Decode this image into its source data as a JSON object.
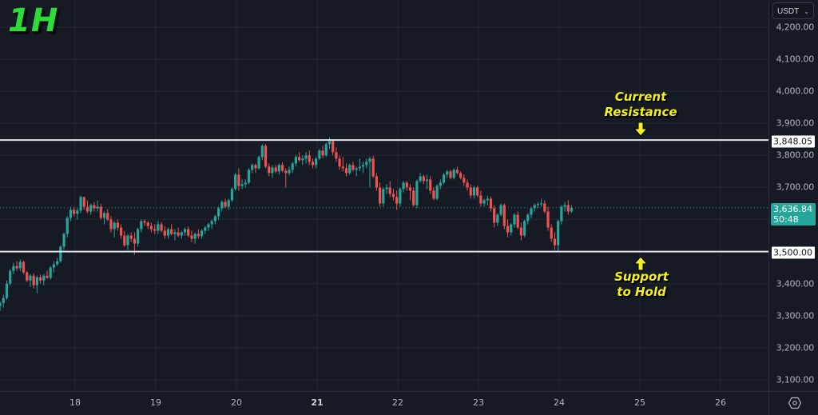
{
  "timeframe_label": "1H",
  "currency": {
    "label": "USDT",
    "icon": "chevron-down-icon"
  },
  "colors": {
    "background": "#161a25",
    "grid": "#232733",
    "up": "#26a69a",
    "down": "#ef5350",
    "level_line": "#e0e3eb",
    "timeframe": "#2ddc38",
    "annotation": "#f5f01b",
    "last_price_bg": "#26a69a"
  },
  "price_axis": {
    "ticks": [
      "4,200.00",
      "4,100.00",
      "4,000.00",
      "3,900.00",
      "3,800.00",
      "3,700.00",
      "3,400.00",
      "3,300.00",
      "3,200.00",
      "3,100.00"
    ],
    "tick_values": [
      4200,
      4100,
      4000,
      3900,
      3800,
      3700,
      3400,
      3300,
      3200,
      3100
    ],
    "resistance_label": "3,848.05",
    "support_label": "3,500.00",
    "last_price_label": "3,636.84",
    "countdown_label": "50:48"
  },
  "time_axis": {
    "ticks": [
      "18",
      "19",
      "20",
      "21",
      "22",
      "23",
      "24",
      "25",
      "26"
    ],
    "bold_index": 3
  },
  "annotations": {
    "resistance_line1": "Current",
    "resistance_line2": "Resistance",
    "support_line1": "Support",
    "support_line2": "to Hold"
  },
  "corner": {
    "icon": "settings-icon"
  },
  "chart_data": {
    "type": "candlestick",
    "title": "1H",
    "xlabel": "",
    "ylabel": "USDT",
    "ylim": [
      3060,
      4250
    ],
    "x_ticks": [
      "18",
      "19",
      "20",
      "21",
      "22",
      "23",
      "24",
      "25",
      "26"
    ],
    "y_ticks": [
      3100,
      3200,
      3300,
      3400,
      3500,
      3600,
      3700,
      3800,
      3900,
      4000,
      4100,
      4200
    ],
    "grid": true,
    "horizontal_levels": [
      {
        "name": "Current Resistance",
        "value": 3848.05
      },
      {
        "name": "Support to Hold",
        "value": 3500.0
      }
    ],
    "last_price": 3636.84,
    "countdown": "50:48",
    "candles_ohlc_start_day": 17.07,
    "candles_per_day": 24,
    "candles": [
      [
        3330,
        3345,
        3315,
        3340
      ],
      [
        3340,
        3365,
        3325,
        3355
      ],
      [
        3355,
        3410,
        3350,
        3400
      ],
      [
        3400,
        3445,
        3395,
        3440
      ],
      [
        3440,
        3465,
        3430,
        3455
      ],
      [
        3455,
        3470,
        3440,
        3448
      ],
      [
        3448,
        3475,
        3440,
        3468
      ],
      [
        3468,
        3472,
        3430,
        3435
      ],
      [
        3435,
        3440,
        3405,
        3410
      ],
      [
        3410,
        3430,
        3390,
        3425
      ],
      [
        3425,
        3432,
        3385,
        3395
      ],
      [
        3395,
        3425,
        3370,
        3420
      ],
      [
        3420,
        3428,
        3400,
        3410
      ],
      [
        3410,
        3430,
        3395,
        3425
      ],
      [
        3425,
        3440,
        3415,
        3418
      ],
      [
        3418,
        3455,
        3412,
        3450
      ],
      [
        3450,
        3470,
        3435,
        3460
      ],
      [
        3460,
        3480,
        3455,
        3470
      ],
      [
        3470,
        3520,
        3465,
        3515
      ],
      [
        3515,
        3560,
        3505,
        3555
      ],
      [
        3555,
        3610,
        3545,
        3605
      ],
      [
        3605,
        3640,
        3595,
        3630
      ],
      [
        3630,
        3640,
        3610,
        3618
      ],
      [
        3618,
        3635,
        3600,
        3628
      ],
      [
        3628,
        3675,
        3620,
        3670
      ],
      [
        3670,
        3672,
        3630,
        3640
      ],
      [
        3640,
        3660,
        3620,
        3625
      ],
      [
        3625,
        3650,
        3615,
        3645
      ],
      [
        3645,
        3655,
        3625,
        3635
      ],
      [
        3635,
        3660,
        3625,
        3640
      ],
      [
        3640,
        3650,
        3600,
        3605
      ],
      [
        3605,
        3625,
        3585,
        3620
      ],
      [
        3620,
        3632,
        3595,
        3600
      ],
      [
        3600,
        3610,
        3560,
        3570
      ],
      [
        3570,
        3595,
        3545,
        3590
      ],
      [
        3590,
        3600,
        3565,
        3575
      ],
      [
        3575,
        3585,
        3540,
        3550
      ],
      [
        3550,
        3565,
        3515,
        3520
      ],
      [
        3520,
        3555,
        3505,
        3550
      ],
      [
        3550,
        3560,
        3530,
        3540
      ],
      [
        3540,
        3560,
        3490,
        3525
      ],
      [
        3525,
        3575,
        3515,
        3570
      ],
      [
        3570,
        3600,
        3560,
        3595
      ],
      [
        3595,
        3600,
        3580,
        3590
      ],
      [
        3590,
        3595,
        3570,
        3580
      ],
      [
        3580,
        3590,
        3560,
        3570
      ],
      [
        3570,
        3585,
        3555,
        3565
      ],
      [
        3565,
        3595,
        3555,
        3585
      ],
      [
        3585,
        3592,
        3560,
        3565
      ],
      [
        3565,
        3580,
        3540,
        3550
      ],
      [
        3550,
        3575,
        3540,
        3570
      ],
      [
        3570,
        3585,
        3550,
        3555
      ],
      [
        3555,
        3570,
        3535,
        3560
      ],
      [
        3560,
        3575,
        3545,
        3550
      ],
      [
        3550,
        3565,
        3540,
        3560
      ],
      [
        3560,
        3575,
        3550,
        3570
      ],
      [
        3570,
        3578,
        3545,
        3550
      ],
      [
        3550,
        3565,
        3530,
        3540
      ],
      [
        3540,
        3560,
        3525,
        3555
      ],
      [
        3555,
        3570,
        3540,
        3548
      ],
      [
        3548,
        3570,
        3540,
        3565
      ],
      [
        3565,
        3580,
        3555,
        3575
      ],
      [
        3575,
        3590,
        3565,
        3585
      ],
      [
        3585,
        3600,
        3570,
        3595
      ],
      [
        3595,
        3615,
        3585,
        3610
      ],
      [
        3610,
        3640,
        3600,
        3635
      ],
      [
        3635,
        3660,
        3625,
        3655
      ],
      [
        3655,
        3665,
        3635,
        3640
      ],
      [
        3640,
        3665,
        3630,
        3660
      ],
      [
        3660,
        3700,
        3655,
        3695
      ],
      [
        3695,
        3745,
        3690,
        3740
      ],
      [
        3740,
        3760,
        3690,
        3705
      ],
      [
        3705,
        3725,
        3695,
        3710
      ],
      [
        3710,
        3725,
        3700,
        3715
      ],
      [
        3715,
        3760,
        3710,
        3755
      ],
      [
        3755,
        3775,
        3745,
        3770
      ],
      [
        3770,
        3775,
        3745,
        3760
      ],
      [
        3760,
        3800,
        3755,
        3795
      ],
      [
        3795,
        3835,
        3785,
        3830
      ],
      [
        3830,
        3835,
        3760,
        3765
      ],
      [
        3765,
        3775,
        3735,
        3745
      ],
      [
        3745,
        3770,
        3730,
        3762
      ],
      [
        3762,
        3770,
        3745,
        3750
      ],
      [
        3750,
        3775,
        3740,
        3770
      ],
      [
        3770,
        3778,
        3748,
        3752
      ],
      [
        3752,
        3760,
        3700,
        3745
      ],
      [
        3745,
        3765,
        3738,
        3755
      ],
      [
        3755,
        3780,
        3745,
        3775
      ],
      [
        3775,
        3800,
        3765,
        3795
      ],
      [
        3795,
        3810,
        3780,
        3785
      ],
      [
        3785,
        3800,
        3770,
        3790
      ],
      [
        3790,
        3810,
        3775,
        3800
      ],
      [
        3800,
        3815,
        3770,
        3780
      ],
      [
        3780,
        3790,
        3760,
        3770
      ],
      [
        3770,
        3795,
        3760,
        3790
      ],
      [
        3790,
        3820,
        3785,
        3815
      ],
      [
        3815,
        3830,
        3790,
        3800
      ],
      [
        3800,
        3840,
        3795,
        3835
      ],
      [
        3835,
        3856,
        3820,
        3845
      ],
      [
        3845,
        3850,
        3800,
        3810
      ],
      [
        3810,
        3825,
        3780,
        3790
      ],
      [
        3790,
        3800,
        3755,
        3765
      ],
      [
        3765,
        3795,
        3750,
        3760
      ],
      [
        3760,
        3775,
        3735,
        3745
      ],
      [
        3745,
        3775,
        3740,
        3770
      ],
      [
        3770,
        3780,
        3750,
        3755
      ],
      [
        3755,
        3765,
        3735,
        3760
      ],
      [
        3760,
        3790,
        3750,
        3765
      ],
      [
        3765,
        3780,
        3745,
        3770
      ],
      [
        3770,
        3790,
        3760,
        3780
      ],
      [
        3780,
        3795,
        3700,
        3790
      ],
      [
        3790,
        3798,
        3730,
        3735
      ],
      [
        3735,
        3745,
        3690,
        3700
      ],
      [
        3700,
        3715,
        3640,
        3650
      ],
      [
        3650,
        3700,
        3640,
        3695
      ],
      [
        3695,
        3710,
        3680,
        3700
      ],
      [
        3700,
        3720,
        3670,
        3680
      ],
      [
        3680,
        3695,
        3660,
        3670
      ],
      [
        3670,
        3690,
        3630,
        3650
      ],
      [
        3650,
        3700,
        3640,
        3695
      ],
      [
        3695,
        3720,
        3685,
        3715
      ],
      [
        3715,
        3720,
        3690,
        3700
      ],
      [
        3700,
        3710,
        3660,
        3690
      ],
      [
        3690,
        3700,
        3640,
        3645
      ],
      [
        3645,
        3725,
        3635,
        3720
      ],
      [
        3720,
        3745,
        3715,
        3735
      ],
      [
        3735,
        3740,
        3710,
        3720
      ],
      [
        3720,
        3740,
        3695,
        3725
      ],
      [
        3725,
        3735,
        3680,
        3690
      ],
      [
        3690,
        3700,
        3660,
        3665
      ],
      [
        3665,
        3710,
        3660,
        3705
      ],
      [
        3705,
        3725,
        3695,
        3715
      ],
      [
        3715,
        3745,
        3710,
        3740
      ],
      [
        3740,
        3755,
        3730,
        3750
      ],
      [
        3750,
        3755,
        3725,
        3730
      ],
      [
        3730,
        3760,
        3725,
        3755
      ],
      [
        3755,
        3765,
        3740,
        3745
      ],
      [
        3745,
        3750,
        3725,
        3730
      ],
      [
        3730,
        3740,
        3705,
        3715
      ],
      [
        3715,
        3725,
        3690,
        3700
      ],
      [
        3700,
        3710,
        3665,
        3675
      ],
      [
        3675,
        3705,
        3665,
        3700
      ],
      [
        3700,
        3705,
        3670,
        3675
      ],
      [
        3675,
        3690,
        3640,
        3650
      ],
      [
        3650,
        3665,
        3640,
        3660
      ],
      [
        3660,
        3675,
        3645,
        3665
      ],
      [
        3665,
        3672,
        3625,
        3635
      ],
      [
        3635,
        3645,
        3575,
        3590
      ],
      [
        3590,
        3620,
        3580,
        3615
      ],
      [
        3615,
        3650,
        3610,
        3645
      ],
      [
        3645,
        3650,
        3570,
        3580
      ],
      [
        3580,
        3600,
        3545,
        3560
      ],
      [
        3560,
        3590,
        3550,
        3585
      ],
      [
        3585,
        3620,
        3575,
        3615
      ],
      [
        3615,
        3625,
        3570,
        3575
      ],
      [
        3575,
        3590,
        3535,
        3550
      ],
      [
        3550,
        3600,
        3545,
        3595
      ],
      [
        3595,
        3620,
        3585,
        3615
      ],
      [
        3615,
        3640,
        3605,
        3635
      ],
      [
        3635,
        3650,
        3625,
        3645
      ],
      [
        3645,
        3655,
        3635,
        3648
      ],
      [
        3648,
        3665,
        3640,
        3650
      ],
      [
        3650,
        3660,
        3620,
        3625
      ],
      [
        3625,
        3640,
        3565,
        3575
      ],
      [
        3575,
        3585,
        3530,
        3540
      ],
      [
        3540,
        3560,
        3505,
        3520
      ],
      [
        3520,
        3600,
        3500,
        3595
      ],
      [
        3595,
        3645,
        3585,
        3640
      ],
      [
        3640,
        3655,
        3625,
        3645
      ],
      [
        3645,
        3660,
        3615,
        3625
      ],
      [
        3625,
        3645,
        3620,
        3637
      ]
    ]
  }
}
